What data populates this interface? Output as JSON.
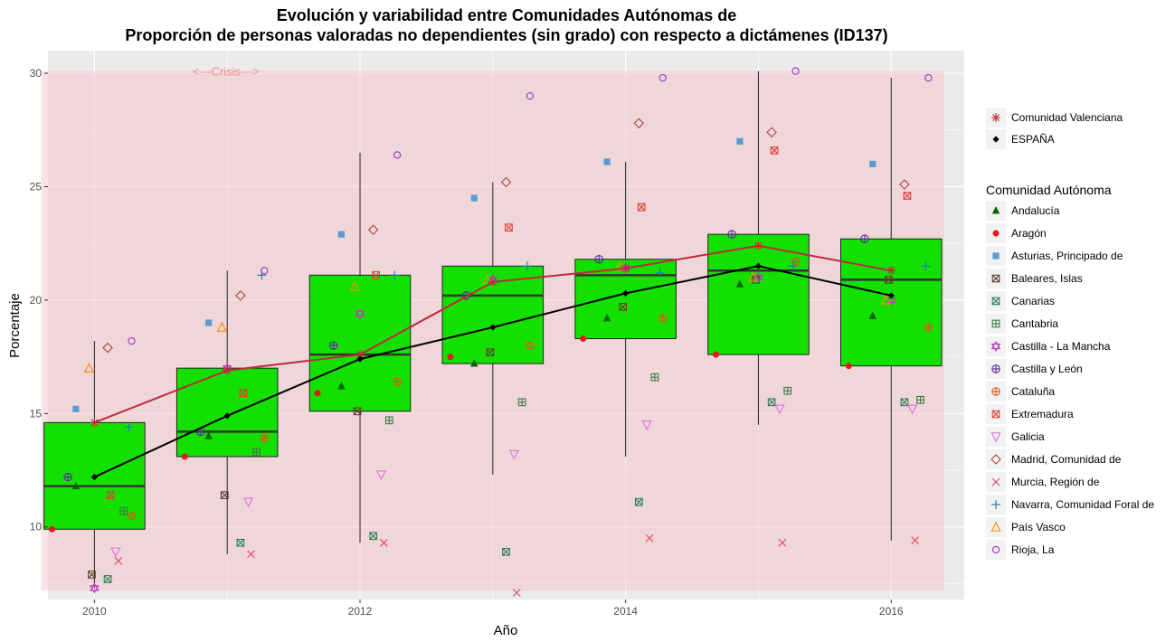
{
  "chart_data": {
    "type": "box",
    "title_line1": "Evolución y variabilidad entre Comunidades Autónomas de",
    "title_line2": "Proporción de personas valoradas no dependientes (sin grado) con respecto a dictámenes (ID137)",
    "xlabel": "Año",
    "ylabel": "Porcentaje",
    "xlim": [
      2009.65,
      2016.55
    ],
    "ylim": [
      6.8,
      31.0
    ],
    "x_ticks": [
      2010,
      2012,
      2014,
      2016
    ],
    "y_ticks": [
      10,
      15,
      20,
      25,
      30
    ],
    "grid": true,
    "legend_position": "right",
    "crisis_band": {
      "label": "<---Crisis--->",
      "x_range": [
        2009.6,
        2016.4
      ],
      "y_range": [
        7.2,
        30.1
      ],
      "color": "#f4b6bb"
    },
    "years": [
      2010,
      2011,
      2012,
      2013,
      2014,
      2015,
      2016
    ],
    "boxes": [
      {
        "year": 2010,
        "q1": 9.9,
        "median": 11.8,
        "q3": 14.6,
        "lower": 7.3,
        "upper": 18.2
      },
      {
        "year": 2011,
        "q1": 13.1,
        "median": 14.2,
        "q3": 17.0,
        "lower": 8.8,
        "upper": 21.3
      },
      {
        "year": 2012,
        "q1": 15.1,
        "median": 17.6,
        "q3": 21.1,
        "lower": 9.3,
        "upper": 26.5
      },
      {
        "year": 2013,
        "q1": 17.2,
        "median": 20.2,
        "q3": 21.5,
        "lower": 12.3,
        "upper": 25.2
      },
      {
        "year": 2014,
        "q1": 18.3,
        "median": 21.1,
        "q3": 21.8,
        "lower": 13.1,
        "upper": 26.1
      },
      {
        "year": 2015,
        "q1": 17.6,
        "median": 21.3,
        "q3": 22.9,
        "lower": 14.5,
        "upper": 30.1
      },
      {
        "year": 2016,
        "q1": 17.1,
        "median": 20.9,
        "q3": 22.7,
        "lower": 9.4,
        "upper": 29.8
      }
    ],
    "box_fill": "#14e000",
    "lines": [
      {
        "name": "Comunidad Valenciana",
        "color": "#c0283c",
        "marker": "asterisk",
        "values": [
          14.6,
          16.9,
          17.6,
          20.8,
          21.4,
          22.4,
          21.3
        ]
      },
      {
        "name": "ESPAÑA",
        "color": "#000000",
        "marker": "diamond-filled",
        "values": [
          12.2,
          14.9,
          17.4,
          18.8,
          20.3,
          21.5,
          20.2
        ]
      }
    ],
    "legend_title": "Comunidad Autónoma",
    "series": [
      {
        "name": "Andalucía",
        "marker": "triangle-filled",
        "color": "#006400",
        "dx": -0.14,
        "values": [
          11.8,
          14.0,
          16.2,
          17.2,
          19.2,
          20.7,
          19.3
        ]
      },
      {
        "name": "Aragón",
        "marker": "circle-filled",
        "color": "#e41a1c",
        "dx": -0.32,
        "values": [
          9.9,
          13.1,
          15.9,
          17.5,
          18.3,
          17.6,
          17.1
        ]
      },
      {
        "name": "Asturias, Principado de",
        "marker": "square-filled",
        "color": "#5b9bd5",
        "dx": -0.14,
        "values": [
          15.2,
          19.0,
          22.9,
          24.5,
          26.1,
          27.0,
          26.0
        ]
      },
      {
        "name": "Baleares, Islas",
        "marker": "square-cross",
        "color": "#5c4033",
        "dx": -0.02,
        "values": [
          7.9,
          11.4,
          15.1,
          17.7,
          19.7,
          20.9,
          20.9
        ]
      },
      {
        "name": "Canarias",
        "marker": "square-x",
        "color": "#2e7d57",
        "dx": 0.1,
        "values": [
          7.7,
          9.3,
          9.6,
          8.9,
          11.1,
          15.5,
          15.5
        ]
      },
      {
        "name": "Cantabria",
        "marker": "square-plus",
        "color": "#3a7d44",
        "dx": 0.22,
        "values": [
          10.7,
          13.3,
          14.7,
          15.5,
          16.6,
          16.0,
          15.6
        ]
      },
      {
        "name": "Castilla - La Mancha",
        "marker": "star-david",
        "color": "#c03cc0",
        "dx": 0.0,
        "values": [
          7.3,
          17.0,
          19.4,
          20.9,
          21.4,
          21.0,
          20.0
        ]
      },
      {
        "name": "Castilla y León",
        "marker": "circle-plus",
        "color": "#5a2aa0",
        "dx": -0.2,
        "values": [
          12.2,
          14.2,
          18.0,
          20.2,
          21.8,
          22.9,
          22.7
        ]
      },
      {
        "name": "Cataluña",
        "marker": "circle-plus",
        "color": "#e8501a",
        "dx": 0.28,
        "values": [
          10.5,
          13.9,
          16.4,
          18.0,
          19.2,
          21.7,
          18.8
        ]
      },
      {
        "name": "Extremadura",
        "marker": "square-x",
        "color": "#e0403a",
        "dx": 0.12,
        "values": [
          11.4,
          15.9,
          21.1,
          23.2,
          24.1,
          26.6,
          24.6
        ]
      },
      {
        "name": "Galicia",
        "marker": "triangle-down",
        "color": "#e070e0",
        "dx": 0.16,
        "values": [
          8.9,
          11.1,
          12.3,
          13.2,
          14.5,
          15.2,
          15.2
        ]
      },
      {
        "name": "Madrid, Comunidad de",
        "marker": "diamond-open",
        "color": "#b04040",
        "dx": 0.1,
        "values": [
          17.9,
          20.2,
          23.1,
          25.2,
          27.8,
          27.4,
          25.1
        ]
      },
      {
        "name": "Murcia, Región de",
        "marker": "x",
        "color": "#e8405a",
        "dx": 0.18,
        "values": [
          8.5,
          8.8,
          9.3,
          7.1,
          9.5,
          9.3,
          9.4
        ]
      },
      {
        "name": "Navarra, Comunidad Foral de",
        "marker": "plus",
        "color": "#1f78b4",
        "dx": 0.26,
        "values": [
          14.4,
          21.1,
          21.1,
          21.5,
          21.2,
          21.5,
          21.5
        ]
      },
      {
        "name": "País Vasco",
        "marker": "triangle-open",
        "color": "#ff8c00",
        "dx": -0.04,
        "values": [
          17.0,
          18.8,
          20.6,
          20.9,
          21.5,
          21.0,
          20.0
        ]
      },
      {
        "name": "Rioja, La",
        "marker": "circle-open",
        "color": "#9932cc",
        "dx": 0.28,
        "values": [
          18.2,
          21.3,
          26.4,
          29.0,
          29.8,
          30.1,
          29.8
        ]
      }
    ]
  }
}
